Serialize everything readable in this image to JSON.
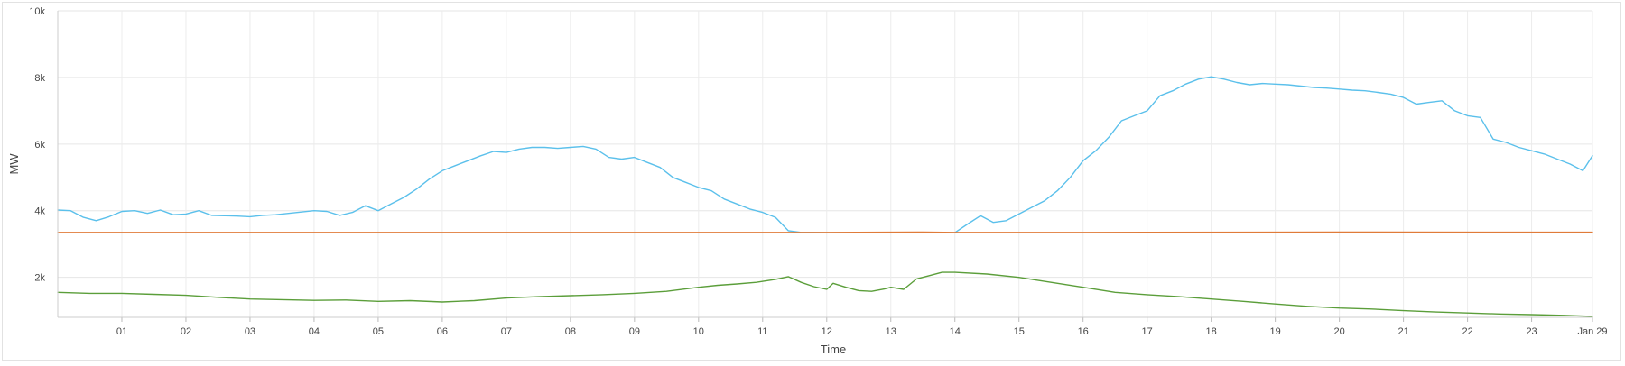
{
  "chart_data": {
    "type": "line",
    "xlabel": "Time",
    "ylabel": "MW",
    "ylim": [
      800,
      10000
    ],
    "xlim": [
      0,
      23.95
    ],
    "grid": true,
    "x_unit": "hour",
    "x_tick_values": [
      1,
      2,
      3,
      4,
      5,
      6,
      7,
      8,
      9,
      10,
      11,
      12,
      13,
      14,
      15,
      16,
      17,
      18,
      19,
      20,
      21,
      22,
      23,
      23.95
    ],
    "x_tick_labels": [
      "01",
      "02",
      "03",
      "04",
      "05",
      "06",
      "07",
      "08",
      "09",
      "10",
      "11",
      "12",
      "13",
      "14",
      "15",
      "16",
      "17",
      "18",
      "19",
      "20",
      "21",
      "22",
      "23",
      "Jan 29"
    ],
    "y_tick_values": [
      2000,
      4000,
      6000,
      8000,
      10000
    ],
    "y_tick_labels": [
      "2k",
      "4k",
      "6k",
      "8k",
      "10k"
    ],
    "series": [
      {
        "color": "#5bc0eb",
        "x": [
          0,
          0.2,
          0.4,
          0.6,
          0.8,
          1.0,
          1.2,
          1.4,
          1.6,
          1.8,
          2.0,
          2.2,
          2.4,
          2.6,
          2.8,
          3.0,
          3.2,
          3.4,
          3.6,
          3.8,
          4.0,
          4.2,
          4.4,
          4.6,
          4.8,
          5.0,
          5.2,
          5.4,
          5.6,
          5.8,
          6.0,
          6.2,
          6.4,
          6.6,
          6.8,
          7.0,
          7.2,
          7.4,
          7.6,
          7.8,
          8.0,
          8.2,
          8.4,
          8.6,
          8.8,
          9.0,
          9.2,
          9.4,
          9.6,
          9.8,
          10.0,
          10.2,
          10.4,
          10.6,
          10.8,
          11.0,
          11.2,
          11.4,
          11.6,
          11.8,
          12.0,
          12.5,
          13.0,
          13.5,
          14.0,
          14.2,
          14.4,
          14.6,
          14.8,
          15.0,
          15.2,
          15.4,
          15.6,
          15.8,
          16.0,
          16.2,
          16.4,
          16.6,
          16.8,
          17.0,
          17.2,
          17.4,
          17.6,
          17.8,
          18.0,
          18.2,
          18.4,
          18.6,
          18.8,
          19.0,
          19.2,
          19.4,
          19.6,
          19.8,
          20.0,
          20.2,
          20.4,
          20.6,
          20.8,
          21.0,
          21.2,
          21.4,
          21.6,
          21.8,
          22.0,
          22.2,
          22.4,
          22.6,
          22.8,
          23.0,
          23.2,
          23.4,
          23.6,
          23.8,
          23.95
        ],
        "y": [
          4020,
          4000,
          3800,
          3700,
          3820,
          3980,
          4000,
          3920,
          4020,
          3880,
          3900,
          4000,
          3860,
          3850,
          3840,
          3820,
          3860,
          3880,
          3920,
          3960,
          4000,
          3980,
          3860,
          3950,
          4150,
          4000,
          4200,
          4400,
          4650,
          4950,
          5200,
          5350,
          5500,
          5650,
          5780,
          5750,
          5850,
          5900,
          5900,
          5870,
          5900,
          5930,
          5850,
          5600,
          5550,
          5600,
          5450,
          5300,
          5000,
          4850,
          4700,
          4600,
          4350,
          4200,
          4050,
          3950,
          3800,
          3400,
          3350,
          3350,
          3340,
          3340,
          3340,
          3340,
          3340,
          3600,
          3850,
          3650,
          3700,
          3900,
          4100,
          4300,
          4600,
          5000,
          5500,
          5800,
          6200,
          6700,
          6850,
          7000,
          7450,
          7600,
          7800,
          7950,
          8020,
          7950,
          7850,
          7780,
          7820,
          7800,
          7780,
          7740,
          7700,
          7680,
          7650,
          7620,
          7600,
          7550,
          7500,
          7400,
          7200,
          7250,
          7300,
          7000,
          6850,
          6800,
          6150,
          6050,
          5900,
          5800,
          5700,
          5550,
          5400,
          5200,
          5650
        ]
      },
      {
        "color": "#e07b39",
        "x": [
          0,
          4,
          8,
          12,
          13.5,
          14,
          16,
          20,
          23.95
        ],
        "y": [
          3350,
          3350,
          3350,
          3350,
          3360,
          3350,
          3350,
          3360,
          3355
        ]
      },
      {
        "color": "#5b9e3a",
        "x": [
          0,
          0.5,
          1.0,
          1.5,
          2.0,
          2.5,
          3.0,
          3.5,
          4.0,
          4.5,
          5.0,
          5.5,
          6.0,
          6.5,
          7.0,
          7.5,
          8.0,
          8.5,
          9.0,
          9.5,
          10.0,
          10.3,
          10.6,
          10.9,
          11.2,
          11.4,
          11.6,
          11.8,
          12.0,
          12.1,
          12.3,
          12.5,
          12.7,
          12.9,
          13.0,
          13.2,
          13.4,
          13.6,
          13.8,
          14.0,
          14.5,
          15.0,
          15.5,
          16.0,
          16.5,
          17.0,
          17.5,
          18.0,
          18.5,
          19.0,
          19.5,
          20.0,
          20.5,
          21.0,
          21.5,
          22.0,
          22.5,
          23.0,
          23.5,
          23.95
        ],
        "y": [
          1550,
          1520,
          1520,
          1490,
          1460,
          1400,
          1350,
          1330,
          1310,
          1320,
          1280,
          1300,
          1260,
          1300,
          1380,
          1420,
          1450,
          1480,
          1520,
          1580,
          1700,
          1760,
          1800,
          1850,
          1940,
          2020,
          1850,
          1720,
          1640,
          1820,
          1700,
          1600,
          1580,
          1650,
          1700,
          1640,
          1950,
          2050,
          2150,
          2150,
          2100,
          2000,
          1850,
          1700,
          1550,
          1480,
          1420,
          1350,
          1280,
          1200,
          1130,
          1080,
          1050,
          1000,
          960,
          930,
          900,
          880,
          860,
          830
        ]
      }
    ]
  }
}
